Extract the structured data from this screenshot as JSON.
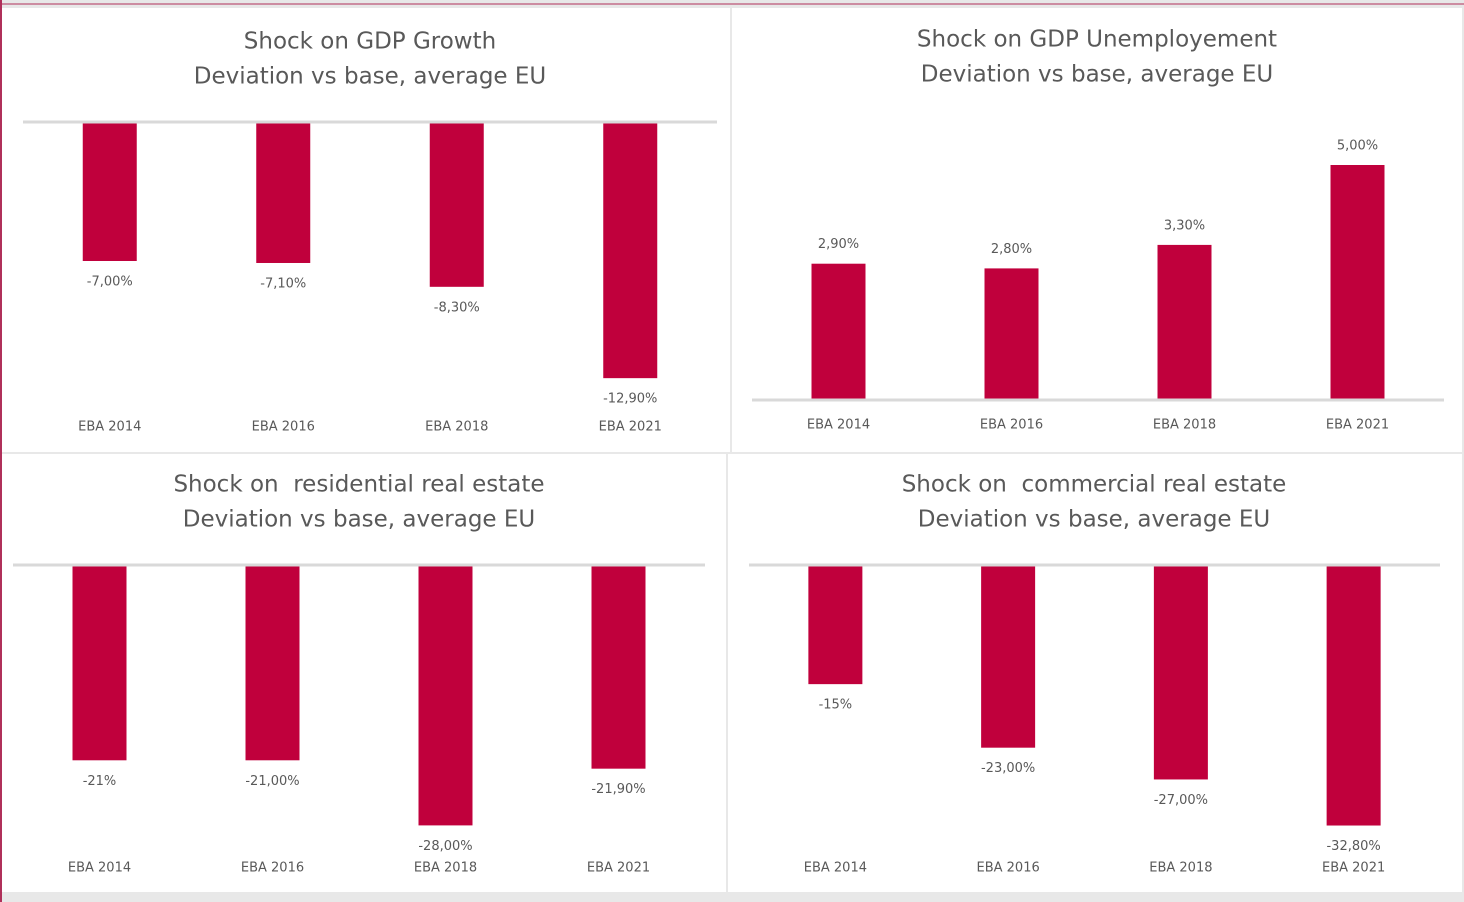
{
  "chart_data": [
    {
      "type": "bar",
      "title": "Shock on GDP Growth",
      "subtitle": "Deviation vs base, average EU",
      "categories": [
        "EBA 2014",
        "EBA 2016",
        "EBA 2018",
        "EBA 2021"
      ],
      "values": [
        -7,
        -7.1,
        -8.3,
        -12.9
      ],
      "value_labels": [
        "-7,00%",
        "-7,10%",
        "-8,30%",
        "-12,90%"
      ],
      "color": "#c0003c",
      "ylim": [
        -14,
        0
      ]
    },
    {
      "type": "bar",
      "title": "Shock on GDP Unemployement",
      "subtitle": "Deviation vs base, average EU",
      "categories": [
        "EBA 2014",
        "EBA 2016",
        "EBA 2018",
        "EBA 2021"
      ],
      "values": [
        2.9,
        2.8,
        3.3,
        5
      ],
      "value_labels": [
        "2,90%",
        "2,80%",
        "3,30%",
        "5,00%"
      ],
      "color": "#c0003c",
      "ylim": [
        0,
        6
      ]
    },
    {
      "type": "bar",
      "title": "Shock on  residential real estate",
      "subtitle": "Deviation vs base, average EU",
      "categories": [
        "EBA 2014",
        "EBA 2016",
        "EBA 2018",
        "EBA 2021"
      ],
      "values": [
        -21,
        -21,
        -28,
        -21.9
      ],
      "value_labels": [
        "-21%",
        "-21,00%",
        "-28,00%",
        "-21,90%"
      ],
      "color": "#c0003c",
      "ylim": [
        -30,
        0
      ]
    },
    {
      "type": "bar",
      "title": "Shock on  commercial real estate",
      "subtitle": "Deviation vs base, average EU",
      "categories": [
        "EBA 2014",
        "EBA 2016",
        "EBA 2018",
        "EBA 2021"
      ],
      "values": [
        -15,
        -23,
        -27,
        -32.8
      ],
      "value_labels": [
        "-15%",
        "-23,00%",
        "-27,00%",
        "-32,80%"
      ],
      "color": "#c0003c",
      "ylim": [
        -35,
        0
      ]
    }
  ]
}
